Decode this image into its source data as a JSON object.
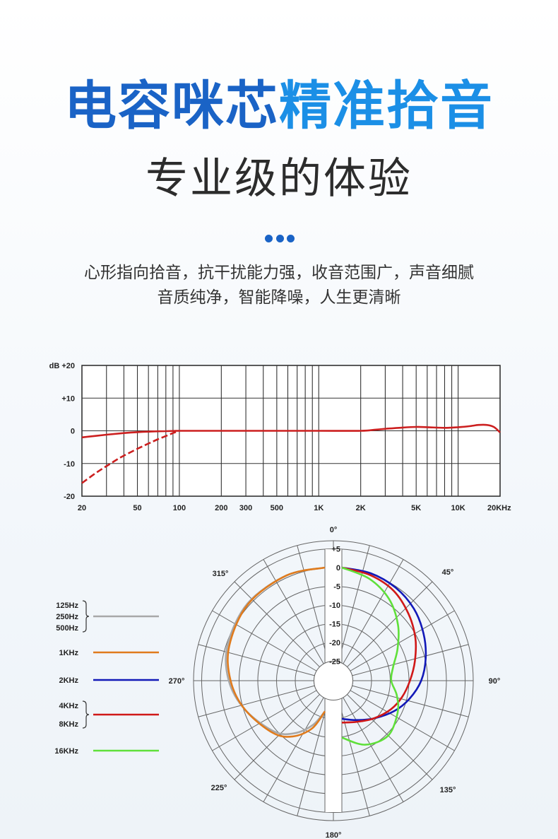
{
  "header": {
    "title_part1": "电容咪芯",
    "title_part2": "精准拾音",
    "subtitle": "专业级的体验",
    "desc_line1": "心形指向拾音，抗干扰能力强，收音范围广，声音细腻",
    "desc_line2": "音质纯净，智能降噪，人生更清晰"
  },
  "colors": {
    "title_dark_blue": "#1a63c6",
    "title_light_blue": "#1b8fe6",
    "response_red": "#cc1f1f",
    "low_mid_gray": "#a8a8a8",
    "khz1_orange": "#e07b1d",
    "khz2_blue": "#1219b8",
    "khz4_8_red": "#d01818",
    "khz16_green": "#5fe03a"
  },
  "chart_data": [
    {
      "type": "line",
      "xscale": "log",
      "x_tick_labels": [
        "20",
        "50",
        "100",
        "200",
        "300",
        "500",
        "1K",
        "2K",
        "5K",
        "10K",
        "20KHz"
      ],
      "x_tick_values": [
        20,
        50,
        100,
        200,
        300,
        500,
        1000,
        2000,
        5000,
        10000,
        20000
      ],
      "y_tick_labels": [
        "dB +20",
        "+10",
        "0",
        "-10",
        "-20"
      ],
      "y_tick_values": [
        20,
        10,
        0,
        -10,
        -20
      ],
      "ylim": [
        -20,
        20
      ],
      "xlim": [
        20,
        20000
      ],
      "grid": true,
      "series": [
        {
          "style": "solid",
          "x": [
            20,
            30,
            40,
            50,
            60,
            70,
            80,
            90,
            100,
            120,
            150,
            200,
            300,
            500,
            1000,
            2000,
            2500,
            3000,
            4000,
            5000,
            6000,
            8000,
            10000,
            12000,
            14000,
            16000,
            18000,
            20000
          ],
          "y": [
            -2,
            -1.2,
            -0.7,
            -0.4,
            -0.25,
            -0.15,
            -0.1,
            -0.05,
            0,
            0,
            0,
            0,
            0,
            0,
            0,
            0,
            0.3,
            0.6,
            1.0,
            1.2,
            1.1,
            0.9,
            1.1,
            1.4,
            1.8,
            1.8,
            1.2,
            -0.5
          ]
        },
        {
          "style": "dashed",
          "x": [
            20,
            25,
            30,
            35,
            40,
            50,
            60,
            70,
            80,
            90,
            100
          ],
          "y": [
            -16,
            -13,
            -10.8,
            -9,
            -7.6,
            -5.5,
            -3.9,
            -2.6,
            -1.6,
            -0.7,
            0
          ]
        }
      ]
    },
    {
      "type": "polar",
      "angle_labels": [
        "0°",
        "45°",
        "90°",
        "135°",
        "180°",
        "225°",
        "270°",
        "315°"
      ],
      "angles": [
        0,
        45,
        90,
        135,
        180,
        225,
        270,
        315
      ],
      "ring_labels": [
        "+5",
        "0",
        "-5",
        "-10",
        "-15",
        "-20",
        "-25"
      ],
      "ring_values": [
        5,
        0,
        -5,
        -10,
        -15,
        -20,
        -25
      ],
      "rlim": [
        -30,
        5
      ],
      "legend": [
        {
          "labels": [
            "125Hz",
            "250Hz",
            "500Hz"
          ],
          "color": "#a8a8a8"
        },
        {
          "labels": [
            "1KHz"
          ],
          "color": "#e07b1d"
        },
        {
          "labels": [
            "2KHz"
          ],
          "color": "#1219b8"
        },
        {
          "labels": [
            "4KHz",
            "8KHz"
          ],
          "color": "#d01818"
        },
        {
          "labels": [
            "16KHz"
          ],
          "color": "#5fe03a"
        }
      ],
      "series": [
        {
          "name": "125Hz",
          "color": "#a8a8a8",
          "side": "left",
          "angle": [
            0,
            20,
            45,
            70,
            90,
            110,
            135,
            150,
            165,
            180
          ],
          "db": [
            0,
            -0.3,
            -1,
            -2.5,
            -4.5,
            -7.5,
            -11,
            -14,
            -18,
            -22
          ]
        },
        {
          "name": "1KHz",
          "color": "#e07b1d",
          "side": "left",
          "angle": [
            0,
            20,
            45,
            70,
            90,
            110,
            135,
            150,
            165,
            180
          ],
          "db": [
            0,
            -0.3,
            -1.2,
            -3,
            -5,
            -7.5,
            -10.5,
            -13,
            -17,
            -22
          ]
        },
        {
          "name": "2KHz",
          "color": "#1219b8",
          "side": "right",
          "angle": [
            0,
            15,
            30,
            45,
            60,
            75,
            90,
            105,
            120,
            140,
            160,
            180
          ],
          "db": [
            0,
            -0.5,
            -1.5,
            -3,
            -5,
            -7,
            -9,
            -11.5,
            -14,
            -17,
            -19,
            -20
          ]
        },
        {
          "name": "4KHz",
          "color": "#d01818",
          "side": "right",
          "angle": [
            0,
            15,
            30,
            45,
            60,
            75,
            90,
            105,
            120,
            140,
            160,
            180
          ],
          "db": [
            0,
            -1,
            -2.5,
            -5,
            -7.5,
            -10,
            -12,
            -13.5,
            -15,
            -17,
            -18.5,
            -19
          ]
        },
        {
          "name": "16KHz",
          "color": "#5fe03a",
          "side": "right",
          "angle": [
            0,
            15,
            30,
            45,
            60,
            75,
            90,
            105,
            120,
            140,
            160,
            180
          ],
          "db": [
            0,
            -2,
            -5,
            -9,
            -13,
            -16,
            -17,
            -15,
            -13,
            -11,
            -12,
            -15
          ]
        }
      ]
    }
  ]
}
